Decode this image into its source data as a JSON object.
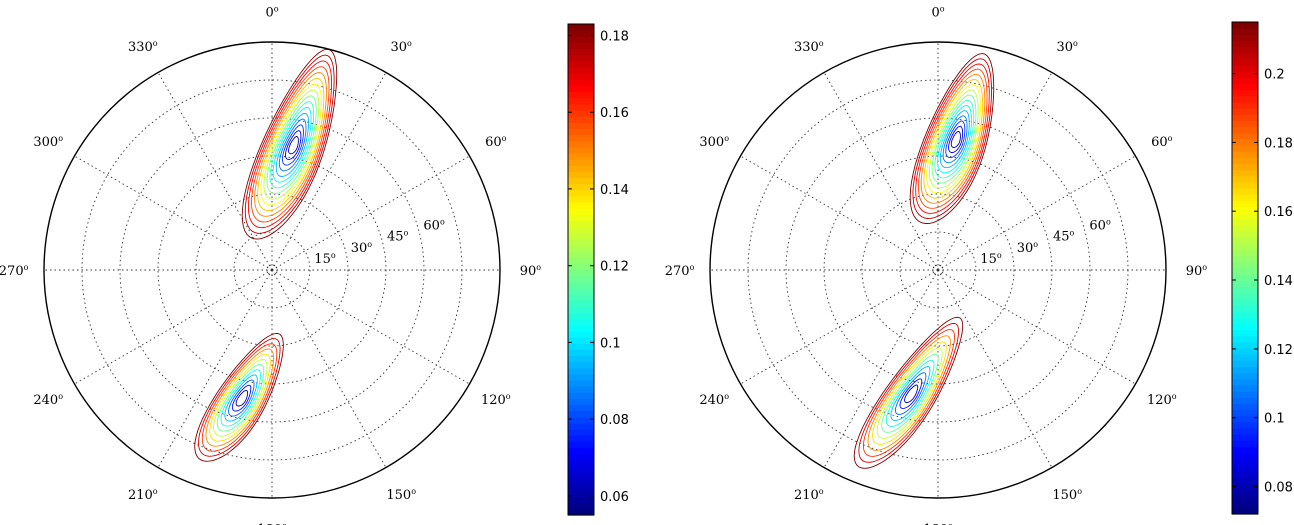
{
  "chart_data": [
    {
      "type": "polar-contour",
      "title": "",
      "angle_labels": [
        "0",
        "30",
        "60",
        "90",
        "120",
        "150",
        "180",
        "210",
        "240",
        "270",
        "300",
        "330"
      ],
      "degree_symbol": "o",
      "radius_labels": [
        "15",
        "30",
        "45",
        "60"
      ],
      "colorbar": {
        "ticks": [
          "0.06",
          "0.08",
          "0.1",
          "0.12",
          "0.14",
          "0.16",
          "0.18"
        ],
        "tick_values": [
          0.06,
          0.08,
          0.1,
          0.12,
          0.14,
          0.16,
          0.18
        ],
        "range": [
          0.055,
          0.183
        ],
        "colormap": "jet"
      },
      "lobes": [
        {
          "theta_deg": 10,
          "r_deg": 50,
          "levels": 16,
          "band_ang_deg": 18,
          "band_r_deg": 25,
          "orientation_deg": 22
        },
        {
          "theta_deg": 193,
          "r_deg": 52,
          "levels": 12,
          "band_ang_deg": 14,
          "band_r_deg": 18,
          "orientation_deg": 32
        }
      ],
      "grid": true
    },
    {
      "type": "polar-contour",
      "title": "",
      "angle_labels": [
        "0",
        "30",
        "60",
        "90",
        "120",
        "150",
        "180",
        "210",
        "240",
        "270",
        "300",
        "330"
      ],
      "degree_symbol": "o",
      "radius_labels": [
        "15",
        "30",
        "45",
        "60"
      ],
      "colorbar": {
        "ticks": [
          "0.08",
          "0.1",
          "0.12",
          "0.14",
          "0.16",
          "0.18",
          "0.2"
        ],
        "tick_values": [
          0.08,
          0.1,
          0.12,
          0.14,
          0.16,
          0.18,
          0.2
        ],
        "range": [
          0.072,
          0.215
        ],
        "colormap": "jet"
      },
      "lobes": [
        {
          "theta_deg": 8,
          "r_deg": 52,
          "levels": 16,
          "band_ang_deg": 18,
          "band_r_deg": 22,
          "orientation_deg": 20
        },
        {
          "theta_deg": 192,
          "r_deg": 50,
          "levels": 12,
          "band_ang_deg": 14,
          "band_r_deg": 22,
          "orientation_deg": 34
        }
      ],
      "grid": true
    }
  ]
}
